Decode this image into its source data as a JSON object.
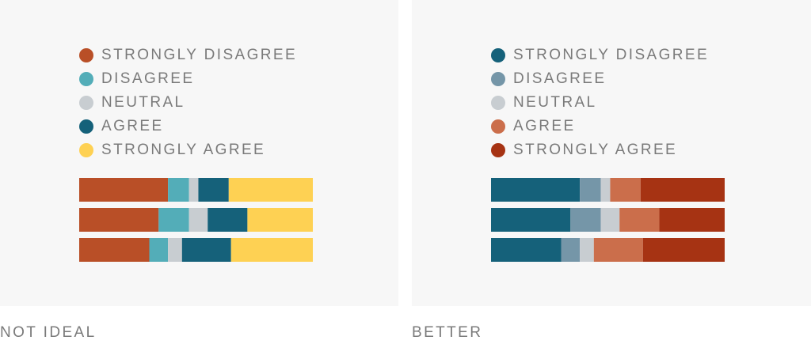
{
  "chart_data": [
    {
      "type": "bar",
      "stacked": true,
      "orientation": "horizontal",
      "caption": "NOT IDEAL",
      "legend": [
        "STRONGLY DISAGREE",
        "DISAGREE",
        "NEUTRAL",
        "AGREE",
        "STRONGLY AGREE"
      ],
      "colors": [
        "#b94f27",
        "#53adb8",
        "#c8cdd1",
        "#15617a",
        "#fed153"
      ],
      "rows": [
        [
          38,
          9,
          4,
          13,
          36
        ],
        [
          34,
          13,
          8,
          17,
          28
        ],
        [
          30,
          8,
          6,
          21,
          35
        ]
      ],
      "xlim": [
        0,
        100
      ]
    },
    {
      "type": "bar",
      "stacked": true,
      "orientation": "horizontal",
      "caption": "BETTER",
      "legend": [
        "STRONGLY DISAGREE",
        "DISAGREE",
        "NEUTRAL",
        "AGREE",
        "STRONGLY AGREE"
      ],
      "colors": [
        "#15617a",
        "#7596a8",
        "#c8cdd1",
        "#cb6e4b",
        "#a63313"
      ],
      "rows": [
        [
          38,
          9,
          4,
          13,
          36
        ],
        [
          34,
          13,
          8,
          17,
          28
        ],
        [
          30,
          8,
          6,
          21,
          35
        ]
      ],
      "xlim": [
        0,
        100
      ]
    }
  ]
}
